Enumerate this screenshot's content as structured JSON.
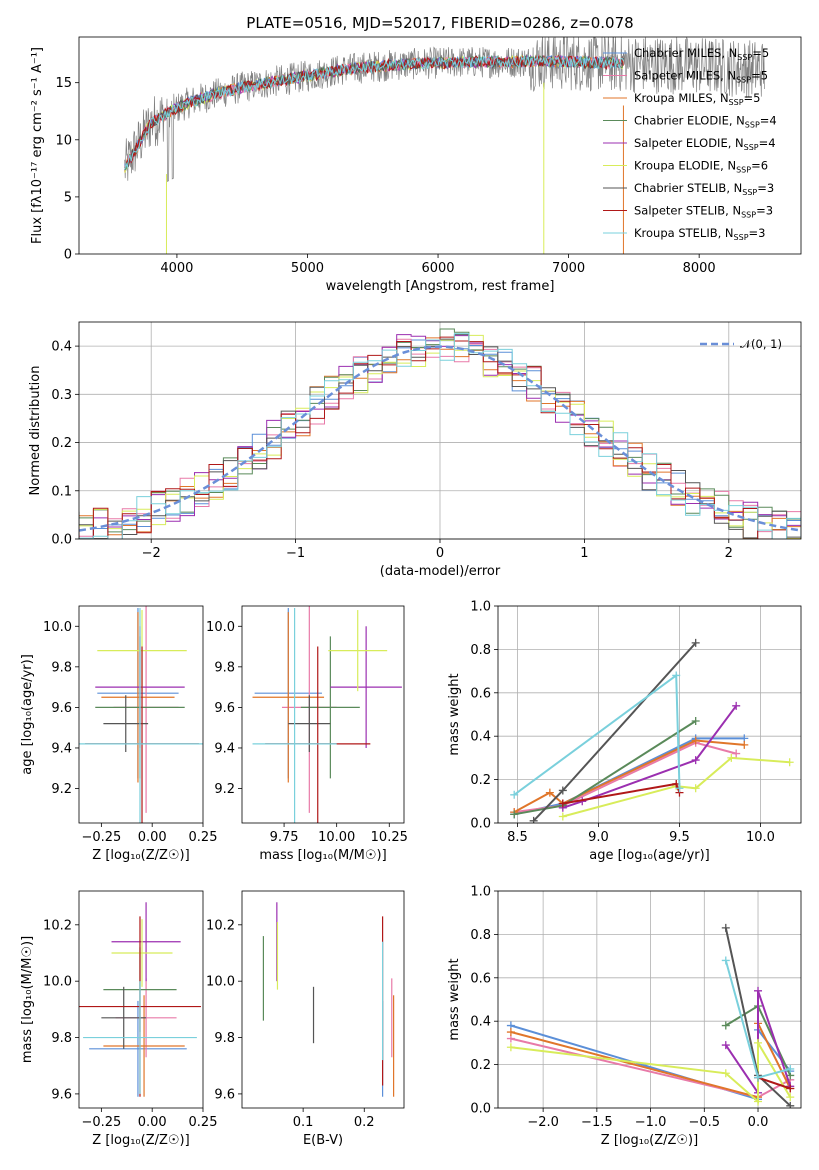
{
  "figure_title": "PLATE=0516, MJD=52017, FIBERID=0286, z=0.078",
  "colors": {
    "Chabrier MILES": "#5b8fd8",
    "Salpeter MILES": "#e87aa8",
    "Kroupa MILES": "#e0762a",
    "Chabrier ELODIE": "#5a8a5a",
    "Salpeter ELODIE": "#9b2fb0",
    "Kroupa ELODIE": "#d8ec5a",
    "Chabrier STELIB": "#555555",
    "Salpeter STELIB": "#b01818",
    "Kroupa STELIB": "#7ad0dc",
    "normal_curve": "#6a8fd8",
    "spectrum_gray": "#808080"
  },
  "chart_data": [
    {
      "id": "spectrum",
      "type": "line",
      "title": "PLATE=0516, MJD=52017, FIBERID=0286, z=0.078",
      "xlabel": "wavelength [Angstrom, rest frame]",
      "ylabel": "Flux [fλ10⁻¹⁷ erg cm⁻² s⁻¹ A⁻¹]",
      "xlim": [
        3250,
        8780
      ],
      "ylim": [
        0,
        19
      ],
      "xticks": [
        4000,
        5000,
        6000,
        7000,
        8000
      ],
      "yticks": [
        0,
        5,
        10,
        15
      ],
      "legend_placement": "right",
      "legend": [
        "Chabrier MILES, N_SSP=5",
        "Salpeter MILES, N_SSP=5",
        "Kroupa MILES, N_SSP=5",
        "Chabrier ELODIE, N_SSP=4",
        "Salpeter ELODIE, N_SSP=4",
        "Kroupa ELODIE, N_SSP=6",
        "Chabrier STELIB, N_SSP=3",
        "Salpeter STELIB, N_SSP=3",
        "Kroupa STELIB, N_SSP=3"
      ],
      "continuum": {
        "x": [
          3600,
          3700,
          3800,
          3950,
          4100,
          4300,
          4500,
          4700,
          5000,
          5300,
          5600,
          5900,
          6200,
          6500,
          6800,
          7100,
          7400,
          7700,
          8000,
          8300,
          8500
        ],
        "y": [
          7.5,
          9.5,
          11.5,
          12.5,
          13.3,
          14.0,
          14.6,
          15.0,
          15.6,
          16.2,
          16.5,
          16.7,
          16.8,
          16.8,
          16.9,
          16.8,
          16.7,
          16.6,
          16.5,
          16.3,
          16.2
        ]
      }
    },
    {
      "id": "residuals",
      "type": "step",
      "xlabel": "(data-model)/error",
      "ylabel": "Normed distribution",
      "xlim": [
        -2.5,
        2.5
      ],
      "ylim": [
        0,
        0.45
      ],
      "xticks": [
        -2,
        -1,
        0,
        1,
        2
      ],
      "yticks": [
        0.0,
        0.1,
        0.2,
        0.3,
        0.4
      ],
      "legend_placement": "top-right",
      "legend": [
        "𝒩(0, 1)"
      ],
      "grid": true,
      "bin_width": 0.1
    },
    {
      "id": "age_vs_Z",
      "type": "errorbar",
      "xlabel": "Z [log₁₀(Z/Z☉)]",
      "ylabel": "age  [log₁₀(age/yr)]",
      "xlim": [
        -0.36,
        0.25
      ],
      "ylim": [
        9.03,
        10.1
      ],
      "xticks": [
        -0.25,
        0.0,
        0.25
      ],
      "yticks": [
        9.2,
        9.4,
        9.6,
        9.8,
        10.0
      ],
      "points": [
        {
          "s": 0,
          "x": -0.07,
          "xe": 0.2,
          "y": 9.67,
          "ye": 0.42
        },
        {
          "s": 1,
          "x": -0.03,
          "xe": 0.16,
          "y": 9.6,
          "ye": 0.52
        },
        {
          "s": 2,
          "x": -0.07,
          "xe": 0.18,
          "y": 9.65,
          "ye": 0.42
        },
        {
          "s": 3,
          "x": -0.06,
          "xe": 0.22,
          "y": 9.6,
          "ye": 0.35
        },
        {
          "s": 4,
          "x": -0.06,
          "xe": 0.22,
          "y": 9.7,
          "ye": 0.3
        },
        {
          "s": 5,
          "x": -0.05,
          "xe": 0.22,
          "y": 9.88,
          "ye": 0.2
        },
        {
          "s": 6,
          "x": -0.13,
          "xe": 0.11,
          "y": 9.52,
          "ye": 0.14
        },
        {
          "s": 7,
          "x": -0.05,
          "xe": 0.28,
          "y": 9.42,
          "ye": 0.48
        },
        {
          "s": 8,
          "x": -0.06,
          "xe": 0.31,
          "y": 9.42,
          "ye": 0.67
        }
      ]
    },
    {
      "id": "age_vs_mass",
      "type": "errorbar",
      "xlabel": "mass [log₁₀(M/M☉)]",
      "ylabel": "",
      "xlim": [
        9.55,
        10.32
      ],
      "ylim": [
        9.03,
        10.1
      ],
      "xticks": [
        9.75,
        10.0,
        10.25
      ],
      "yticks": [
        9.2,
        9.4,
        9.6,
        9.8,
        10.0
      ],
      "points": [
        {
          "s": 0,
          "x": 9.77,
          "xe": 0.16,
          "y": 9.67,
          "ye": 0.42
        },
        {
          "s": 1,
          "x": 9.87,
          "xe": 0.13,
          "y": 9.6,
          "ye": 0.52
        },
        {
          "s": 2,
          "x": 9.77,
          "xe": 0.17,
          "y": 9.65,
          "ye": 0.42
        },
        {
          "s": 3,
          "x": 9.97,
          "xe": 0.14,
          "y": 9.6,
          "ye": 0.35
        },
        {
          "s": 4,
          "x": 10.14,
          "xe": 0.17,
          "y": 9.7,
          "ye": 0.3
        },
        {
          "s": 5,
          "x": 10.1,
          "xe": 0.14,
          "y": 9.88,
          "ye": 0.2
        },
        {
          "s": 6,
          "x": 9.87,
          "xe": 0.1,
          "y": 9.52,
          "ye": 0.14
        },
        {
          "s": 7,
          "x": 9.91,
          "xe": 0.25,
          "y": 9.42,
          "ye": 0.48
        },
        {
          "s": 8,
          "x": 9.8,
          "xe": 0.2,
          "y": 9.42,
          "ye": 0.67
        }
      ]
    },
    {
      "id": "mw_vs_age",
      "type": "line",
      "xlabel": "age  [log₁₀(age/yr)]",
      "ylabel": "mass weight",
      "xlim": [
        8.38,
        10.25
      ],
      "ylim": [
        0,
        1
      ],
      "xticks": [
        8.5,
        9.0,
        9.5,
        10.0
      ],
      "yticks": [
        0.0,
        0.2,
        0.4,
        0.6,
        0.8,
        1.0
      ],
      "grid": true,
      "series": [
        {
          "s": 0,
          "x": [
            8.48,
            8.78,
            9.6,
            9.9
          ],
          "y": [
            0.04,
            0.09,
            0.39,
            0.39
          ]
        },
        {
          "s": 1,
          "x": [
            8.48,
            8.78,
            9.6,
            9.85
          ],
          "y": [
            0.05,
            0.08,
            0.37,
            0.32
          ]
        },
        {
          "s": 2,
          "x": [
            8.48,
            8.7,
            8.78,
            9.6,
            9.9
          ],
          "y": [
            0.05,
            0.14,
            0.09,
            0.38,
            0.36
          ]
        },
        {
          "s": 3,
          "x": [
            8.48,
            8.78,
            9.6
          ],
          "y": [
            0.04,
            0.08,
            0.47
          ]
        },
        {
          "s": 4,
          "x": [
            8.78,
            8.9,
            9.6,
            9.85
          ],
          "y": [
            0.07,
            0.1,
            0.29,
            0.54
          ]
        },
        {
          "s": 5,
          "x": [
            8.78,
            9.48,
            9.6,
            9.82,
            10.18
          ],
          "y": [
            0.03,
            0.17,
            0.16,
            0.3,
            0.28
          ]
        },
        {
          "s": 6,
          "x": [
            8.6,
            8.78,
            9.6
          ],
          "y": [
            0.01,
            0.15,
            0.83
          ]
        },
        {
          "s": 7,
          "x": [
            8.78,
            9.48,
            9.5
          ],
          "y": [
            0.09,
            0.18,
            0.14
          ]
        },
        {
          "s": 8,
          "x": [
            8.48,
            9.48,
            9.5
          ],
          "y": [
            0.13,
            0.68,
            0.16
          ]
        }
      ]
    },
    {
      "id": "mass_vs_Z",
      "type": "errorbar",
      "xlabel": "Z [log₁₀(Z/Z☉)]",
      "ylabel": "mass [log₁₀(M/M☉)]",
      "xlim": [
        -0.36,
        0.25
      ],
      "ylim": [
        9.55,
        10.32
      ],
      "xticks": [
        -0.25,
        0.0,
        0.25
      ],
      "yticks": [
        9.6,
        9.8,
        10.0,
        10.2
      ],
      "points": [
        {
          "s": 0,
          "x": -0.07,
          "xe": 0.24,
          "y": 9.76,
          "ye": 0.17
        },
        {
          "s": 1,
          "x": -0.03,
          "xe": 0.15,
          "y": 9.87,
          "ye": 0.14
        },
        {
          "s": 2,
          "x": -0.04,
          "xe": 0.2,
          "y": 9.77,
          "ye": 0.18
        },
        {
          "s": 3,
          "x": -0.06,
          "xe": 0.18,
          "y": 9.97,
          "ye": 0.15
        },
        {
          "s": 4,
          "x": -0.03,
          "xe": 0.17,
          "y": 10.14,
          "ye": 0.14
        },
        {
          "s": 5,
          "x": -0.05,
          "xe": 0.15,
          "y": 10.1,
          "ye": 0.12
        },
        {
          "s": 6,
          "x": -0.14,
          "xe": 0.11,
          "y": 9.87,
          "ye": 0.11
        },
        {
          "s": 7,
          "x": -0.06,
          "xe": 0.3,
          "y": 9.91,
          "ye": 0.32
        },
        {
          "s": 8,
          "x": -0.06,
          "xe": 0.28,
          "y": 9.8,
          "ye": 0.2
        }
      ]
    },
    {
      "id": "mass_vs_ebv",
      "type": "errorbar",
      "xlabel": "E(B-V)",
      "ylabel": "",
      "xlim": [
        0.0,
        0.265
      ],
      "ylim": [
        9.55,
        10.32
      ],
      "xticks": [
        0.1,
        0.2
      ],
      "yticks": [
        9.6,
        9.8,
        10.0,
        10.2
      ],
      "points": [
        {
          "s": 0,
          "x": 0.23,
          "xe": 0,
          "y": 9.76,
          "ye": 0.17
        },
        {
          "s": 1,
          "x": 0.245,
          "xe": 0,
          "y": 9.87,
          "ye": 0.14
        },
        {
          "s": 2,
          "x": 0.248,
          "xe": 0,
          "y": 9.77,
          "ye": 0.18
        },
        {
          "s": 3,
          "x": 0.035,
          "xe": 0,
          "y": 10.01,
          "ye": 0.15
        },
        {
          "s": 4,
          "x": 0.057,
          "xe": 0,
          "y": 10.14,
          "ye": 0.14
        },
        {
          "s": 5,
          "x": 0.058,
          "xe": 0,
          "y": 10.09,
          "ye": 0.12
        },
        {
          "s": 6,
          "x": 0.117,
          "xe": 0,
          "y": 9.88,
          "ye": 0.1
        },
        {
          "s": 7,
          "x": 0.23,
          "xe": 0,
          "y": 9.93,
          "ye": 0.3
        },
        {
          "s": 8,
          "x": 0.23,
          "xe": 0,
          "y": 9.93,
          "ye": 0.21
        }
      ]
    },
    {
      "id": "mw_vs_Z",
      "type": "line",
      "xlabel": "Z [log₁₀(Z/Z☉)]",
      "ylabel": "mass weight",
      "xlim": [
        -2.42,
        0.4
      ],
      "ylim": [
        0,
        1
      ],
      "xticks": [
        -2.0,
        -1.5,
        -1.0,
        -0.5,
        0.0
      ],
      "yticks": [
        0.0,
        0.2,
        0.4,
        0.6,
        0.8,
        1.0
      ],
      "grid": true,
      "series": [
        {
          "s": 0,
          "x": [
            -2.3,
            0.0,
            0.0,
            0.3
          ],
          "y": [
            0.38,
            0.04,
            0.36,
            0.17
          ]
        },
        {
          "s": 1,
          "x": [
            -2.3,
            0.0,
            0.3
          ],
          "y": [
            0.32,
            0.05,
            0.13
          ]
        },
        {
          "s": 2,
          "x": [
            -2.3,
            0.0,
            0.0,
            0.3
          ],
          "y": [
            0.35,
            0.05,
            0.39,
            0.09
          ]
        },
        {
          "s": 3,
          "x": [
            -0.3,
            0.0,
            0.3
          ],
          "y": [
            0.38,
            0.47,
            0.15
          ]
        },
        {
          "s": 4,
          "x": [
            -0.3,
            0.0,
            0.0,
            0.3
          ],
          "y": [
            0.29,
            0.07,
            0.54,
            0.1
          ]
        },
        {
          "s": 5,
          "x": [
            -2.3,
            -0.3,
            0.0,
            0.0,
            0.3
          ],
          "y": [
            0.28,
            0.16,
            0.03,
            0.3,
            0.05
          ]
        },
        {
          "s": 6,
          "x": [
            -0.3,
            0.0,
            0.3
          ],
          "y": [
            0.83,
            0.15,
            0.01
          ]
        },
        {
          "s": 7,
          "x": [
            0.0,
            0.3
          ],
          "y": [
            0.14,
            0.09
          ]
        },
        {
          "s": 8,
          "x": [
            -0.3,
            0.0,
            0.3
          ],
          "y": [
            0.68,
            0.14,
            0.18
          ]
        }
      ]
    }
  ]
}
